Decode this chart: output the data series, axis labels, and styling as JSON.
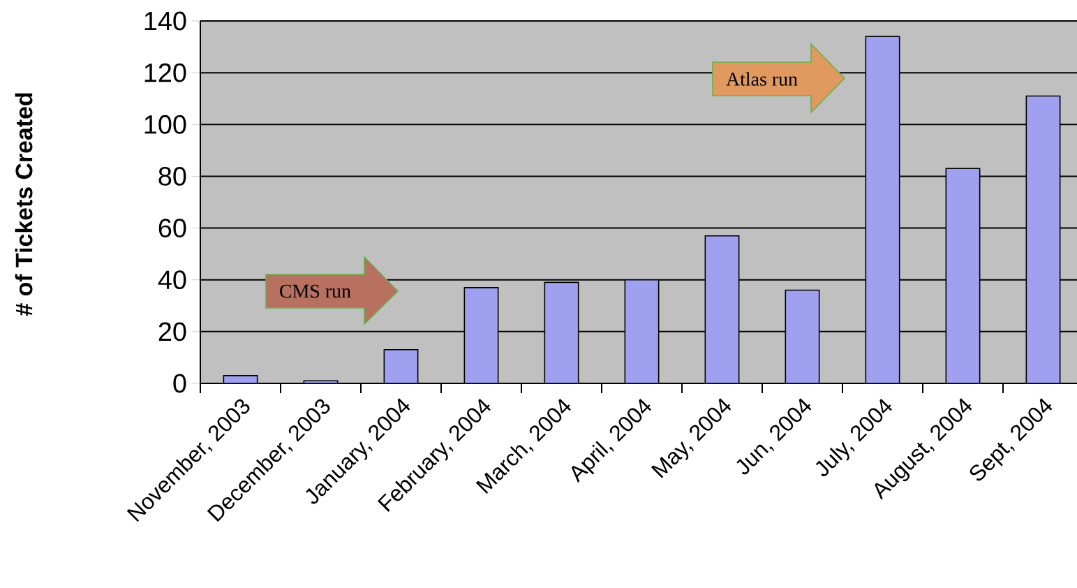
{
  "chart_data": {
    "type": "bar",
    "ylabel": "# of Tickets Created",
    "categories": [
      "November, 2003",
      "December, 2003",
      "January, 2004",
      "February, 2004",
      "March, 2004",
      "April, 2004",
      "May, 2004",
      "Jun, 2004",
      "July, 2004",
      "August, 2004",
      "Sept, 2004"
    ],
    "values": [
      3,
      1,
      13,
      37,
      39,
      40,
      57,
      36,
      134,
      83,
      111
    ],
    "color": "#a0a0f0",
    "ylim": [
      0,
      140
    ],
    "yticks": [
      0,
      20,
      40,
      60,
      80,
      100,
      120,
      140
    ],
    "grid": "y",
    "annotations": [
      "CMS run",
      "Atlas run"
    ]
  }
}
